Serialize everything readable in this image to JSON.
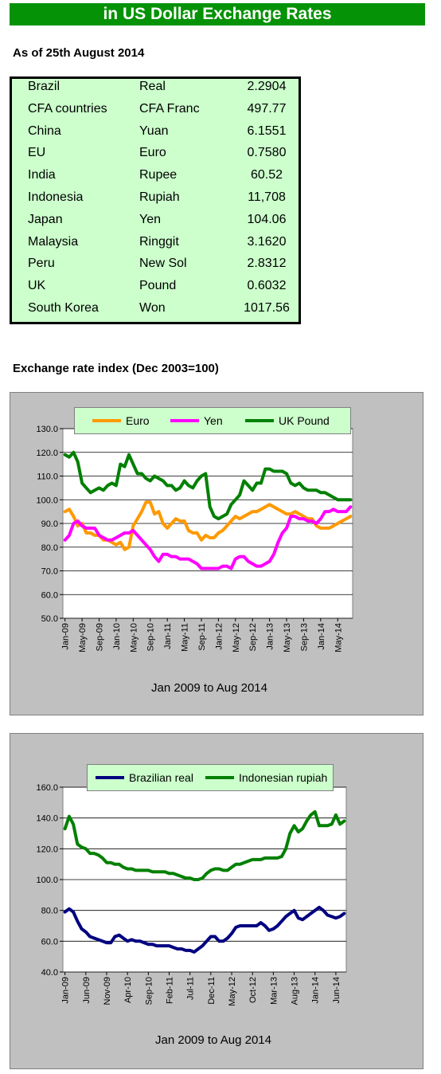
{
  "header": {
    "title": "in US Dollar Exchange Rates",
    "as_of": "As of 25th August 2014"
  },
  "rates_table": [
    {
      "country": "Brazil",
      "currency": "Real",
      "value": "2.2904"
    },
    {
      "country": "CFA countries",
      "currency": "CFA Franc",
      "value": "497.77"
    },
    {
      "country": "China",
      "currency": "Yuan",
      "value": "6.1551"
    },
    {
      "country": "EU",
      "currency": "Euro",
      "value": "0.7580"
    },
    {
      "country": "India",
      "currency": "Rupee",
      "value": "60.52"
    },
    {
      "country": "Indonesia",
      "currency": "Rupiah",
      "value": "11,708"
    },
    {
      "country": "Japan",
      "currency": "Yen",
      "value": "104.06"
    },
    {
      "country": "Malaysia",
      "currency": "Ringgit",
      "value": "3.1620"
    },
    {
      "country": "Peru",
      "currency": "New Sol",
      "value": "2.8312"
    },
    {
      "country": "UK",
      "currency": "Pound",
      "value": "0.6032"
    },
    {
      "country": "South Korea",
      "currency": "Won",
      "value": "1017.56"
    }
  ],
  "section_title": "Exchange rate index (Dec 2003=100)",
  "chart_data": [
    {
      "type": "line",
      "title": "",
      "xlabel": "Jan 2009 to Aug 2014",
      "ylabel": "",
      "ylim": [
        50,
        130
      ],
      "yticks": [
        "50.0",
        "60.0",
        "70.0",
        "80.0",
        "90.0",
        "100.0",
        "110.0",
        "120.0",
        "130.0"
      ],
      "x_tick_labels": [
        "Jan-09",
        "May-09",
        "Sep-09",
        "Jan-10",
        "May-10",
        "Sep-10",
        "Jan-11",
        "May-11",
        "Sep-11",
        "Jan-12",
        "May-12",
        "Sep-12",
        "Jan-13",
        "May-13",
        "Sep-13",
        "Jan-14",
        "May-14"
      ],
      "n_points": 68,
      "grid": true,
      "legend_position": "top",
      "series": [
        {
          "name": "Euro",
          "color": "#ff9900",
          "values": [
            95,
            96,
            93,
            89,
            90,
            86,
            86,
            85,
            85,
            83,
            83,
            82,
            81,
            82,
            79,
            80,
            89,
            92,
            95,
            99,
            99,
            94,
            95,
            90,
            88,
            90,
            92,
            91,
            91,
            87,
            86,
            86,
            83,
            85,
            84,
            84,
            86,
            87,
            89,
            91,
            93,
            92,
            93,
            94,
            95,
            95,
            96,
            97,
            98,
            97,
            96,
            95,
            94,
            94,
            95,
            94,
            93,
            92,
            92,
            89,
            88,
            88,
            88,
            89,
            90,
            91,
            92,
            93
          ],
          "values_tail_note": ""
        },
        {
          "name": "Yen",
          "color": "#ff00ff",
          "values": [
            83,
            85,
            90,
            91,
            89,
            88,
            88,
            88,
            85,
            84,
            83,
            83,
            84,
            85,
            86,
            86,
            87,
            85,
            83,
            81,
            79,
            76,
            74,
            77,
            77,
            76,
            76,
            75,
            75,
            75,
            74,
            73,
            71,
            71,
            71,
            71,
            71,
            72,
            72,
            71,
            75,
            76,
            76,
            74,
            73,
            72,
            72,
            73,
            74,
            77,
            82,
            86,
            88,
            93,
            93,
            92,
            92,
            91,
            91,
            90,
            92,
            95,
            95,
            96,
            95,
            95,
            95,
            97
          ]
        },
        {
          "name": "UK Pound",
          "color": "#008000",
          "values": [
            119,
            118,
            120,
            116,
            107,
            105,
            103,
            104,
            105,
            104,
            106,
            107,
            106,
            115,
            114,
            119,
            115,
            111,
            111,
            109,
            108,
            110,
            109,
            108,
            106,
            106,
            104,
            105,
            108,
            106,
            105,
            108,
            110,
            111,
            97,
            93,
            92,
            93,
            94,
            98,
            100,
            102,
            108,
            106,
            104,
            107,
            107,
            113,
            113,
            112,
            112,
            112,
            111,
            107,
            106,
            107,
            105,
            104,
            104,
            104,
            103,
            103,
            102,
            101,
            100,
            100,
            100,
            100
          ]
        }
      ]
    },
    {
      "type": "line",
      "title": "",
      "xlabel": "Jan 2009 to Aug 2014",
      "ylabel": "",
      "ylim": [
        40,
        160
      ],
      "yticks": [
        "40.0",
        "60.0",
        "80.0",
        "100.0",
        "120.0",
        "140.0",
        "160.0"
      ],
      "x_tick_labels": [
        "Jan-09",
        "Jun-09",
        "Nov-09",
        "Apr-10",
        "Sep-10",
        "Feb-11",
        "Jul-11",
        "Dec-11",
        "May-12",
        "Oct-12",
        "Mar-13",
        "Aug-13",
        "Jan-14",
        "Jun-14"
      ],
      "n_points": 68,
      "grid": true,
      "legend_position": "top",
      "series": [
        {
          "name": "Brazilian real",
          "color": "#000080",
          "values": [
            79,
            81,
            79,
            73,
            68,
            66,
            63,
            62,
            61,
            60,
            59,
            59,
            63,
            64,
            62,
            60,
            61,
            60,
            60,
            59,
            58,
            58,
            57,
            57,
            57,
            57,
            56,
            55,
            55,
            54,
            54,
            53,
            55,
            57,
            60,
            63,
            63,
            60,
            60,
            62,
            65,
            69,
            70,
            70,
            70,
            70,
            70,
            72,
            70,
            67,
            68,
            70,
            73,
            76,
            78,
            80,
            75,
            74,
            76,
            78,
            80,
            82,
            80,
            77,
            76,
            75,
            76,
            78
          ]
        },
        {
          "name": "Indonesian rupiah",
          "color": "#008000",
          "values": [
            133,
            141,
            136,
            123,
            121,
            120,
            117,
            117,
            116,
            114,
            111,
            111,
            110,
            110,
            108,
            107,
            107,
            106,
            106,
            106,
            106,
            105,
            105,
            105,
            105,
            104,
            104,
            103,
            102,
            101,
            101,
            100,
            100,
            101,
            104,
            106,
            107,
            107,
            106,
            106,
            108,
            110,
            110,
            111,
            112,
            113,
            113,
            113,
            114,
            114,
            114,
            114,
            115,
            120,
            130,
            135,
            131,
            133,
            138,
            142,
            144,
            135,
            135,
            135,
            136,
            142,
            136,
            138
          ]
        }
      ]
    }
  ]
}
